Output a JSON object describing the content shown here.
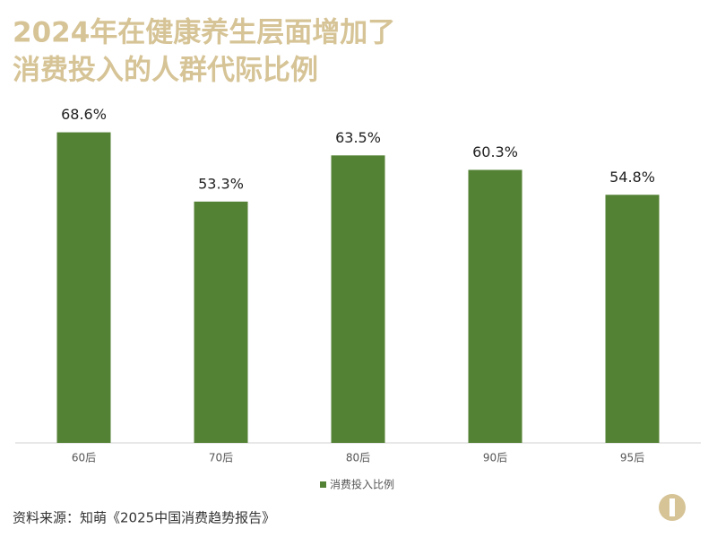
{
  "chart_data": {
    "type": "bar",
    "title": [
      "2024年在健康养生层面增加了",
      "消费投入的人群代际比例"
    ],
    "categories": [
      "60后",
      "70后",
      "80后",
      "90后",
      "95后"
    ],
    "series": [
      {
        "name": "消费投入比例",
        "color": "#548235",
        "values": [
          68.6,
          53.3,
          63.5,
          60.3,
          54.8
        ],
        "value_labels": [
          "68.6%",
          "53.3%",
          "63.5%",
          "60.3%",
          "54.8%"
        ]
      }
    ],
    "source": "资料来源：知萌《2025中国消费趋势报告》"
  }
}
